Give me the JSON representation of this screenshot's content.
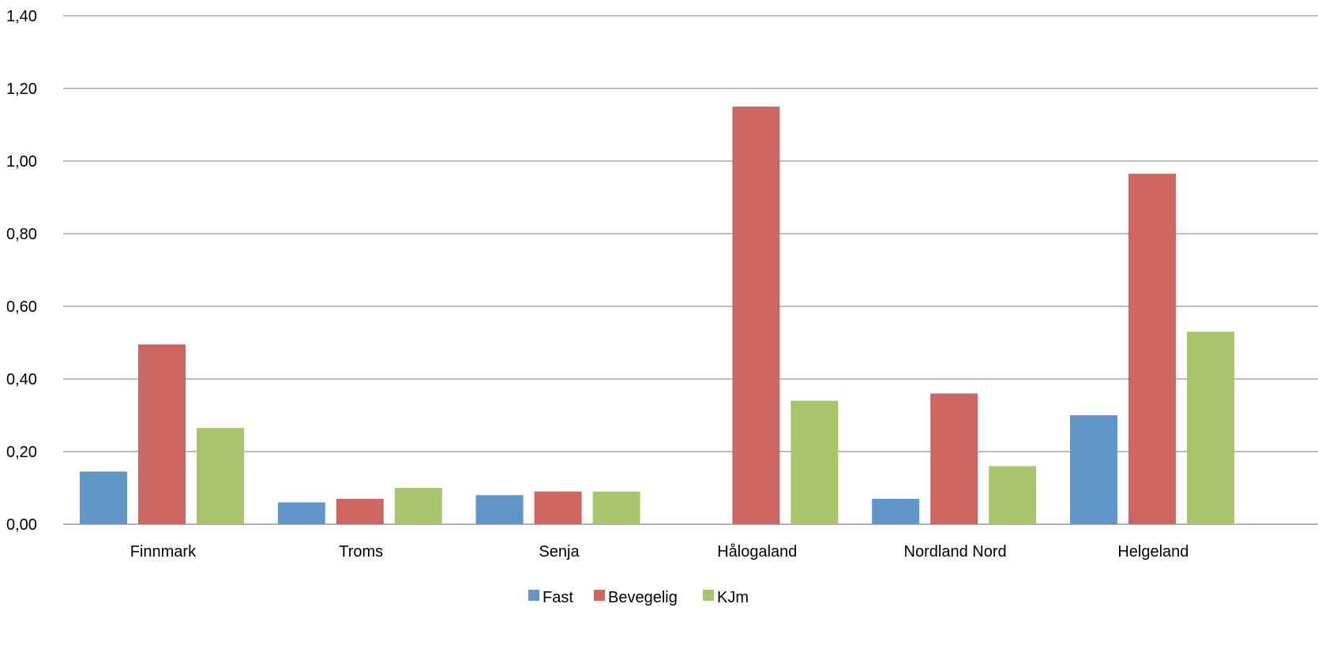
{
  "chart_data": {
    "type": "bar",
    "title": "",
    "xlabel": "",
    "ylabel": "",
    "categories": [
      "Finnmark",
      "Troms",
      "Senja",
      "Hålogaland",
      "Nordland Nord",
      "Helgeland"
    ],
    "series": [
      {
        "name": "Fast",
        "color": "#6096C9",
        "values": [
          0.145,
          0.06,
          0.08,
          0.0,
          0.07,
          0.3
        ]
      },
      {
        "name": "Bevegelig",
        "color": "#CD6660",
        "values": [
          0.495,
          0.07,
          0.09,
          1.15,
          0.36,
          0.965
        ]
      },
      {
        "name": "KJm",
        "color": "#A9C56B",
        "values": [
          0.265,
          0.1,
          0.09,
          0.34,
          0.16,
          0.53
        ]
      }
    ],
    "ylim": [
      0,
      1.4
    ],
    "yticks": [
      "0,00",
      "0,20",
      "0,40",
      "0,60",
      "0,80",
      "1,00",
      "1,20",
      "1,40"
    ],
    "grid": true,
    "legend_position": "bottom"
  }
}
